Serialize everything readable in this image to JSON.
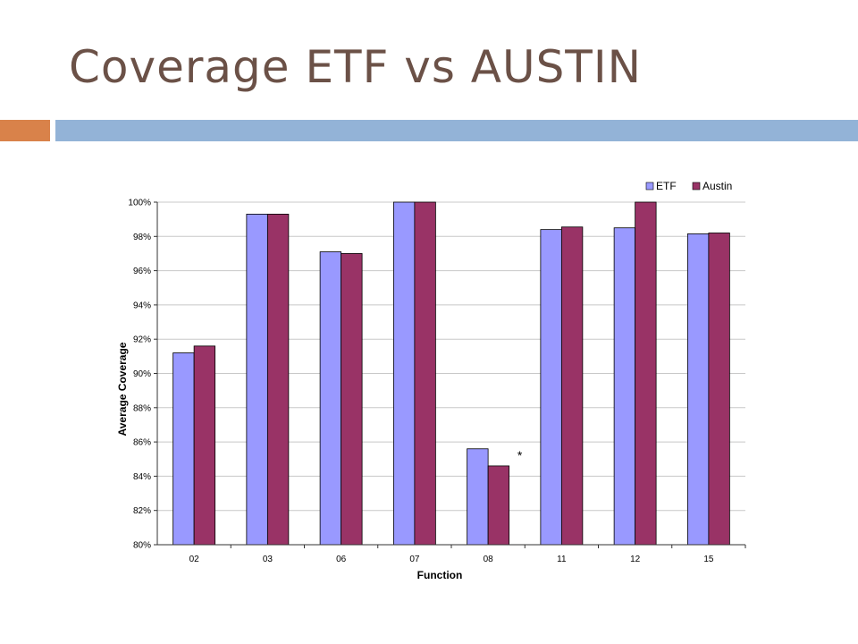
{
  "slide": {
    "title": "Coverage ETF vs AUSTIN",
    "accent_orange": "#d9824a",
    "accent_blue": "#93b3d7"
  },
  "chart_data": {
    "type": "bar",
    "categories": [
      "02",
      "03",
      "06",
      "07",
      "08",
      "11",
      "12",
      "15"
    ],
    "series": [
      {
        "name": "ETF",
        "color": "#9999ff",
        "values": [
          91.2,
          99.3,
          97.1,
          100.0,
          85.6,
          98.4,
          98.5,
          98.15
        ]
      },
      {
        "name": "Austin",
        "color": "#993366",
        "values": [
          91.6,
          99.3,
          97.0,
          100.0,
          84.6,
          98.55,
          100.0,
          98.2
        ]
      }
    ],
    "xlabel": "Function",
    "ylabel": "Average Coverage",
    "ylim": [
      80,
      100
    ],
    "yticks": [
      "80%",
      "82%",
      "84%",
      "86%",
      "88%",
      "90%",
      "92%",
      "94%",
      "96%",
      "98%",
      "100%"
    ],
    "annotation": "*",
    "legend": "top-right",
    "grid": true
  }
}
